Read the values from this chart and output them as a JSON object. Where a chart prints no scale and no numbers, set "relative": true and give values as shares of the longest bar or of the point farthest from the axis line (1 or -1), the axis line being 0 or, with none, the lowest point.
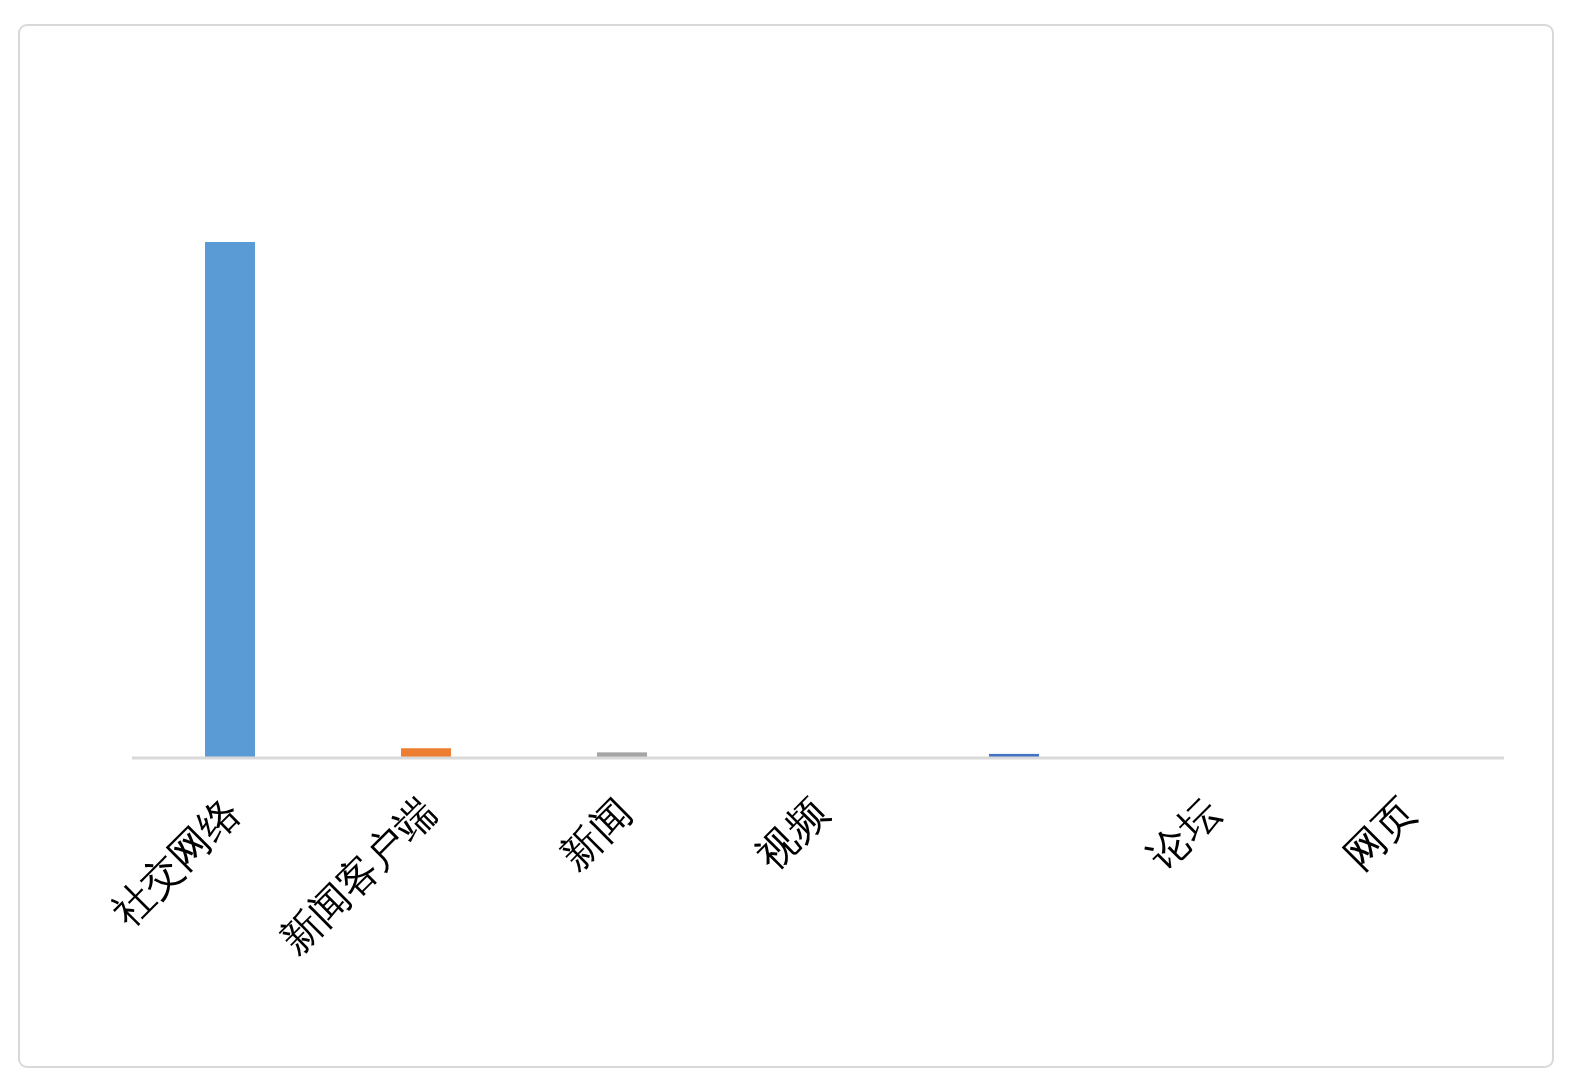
{
  "chart_data": {
    "type": "bar",
    "categories": [
      "社交网络",
      "新闻客户端",
      "新闻",
      "视频",
      null,
      "论坛",
      "网页"
    ],
    "values": [
      1,
      0.017,
      0.009,
      0,
      0.006,
      0,
      0
    ],
    "colors": [
      "#5b9bd5",
      "#ed7d31",
      "#a5a5a5",
      null,
      "#4472c4",
      null,
      null
    ],
    "relative": true
  }
}
